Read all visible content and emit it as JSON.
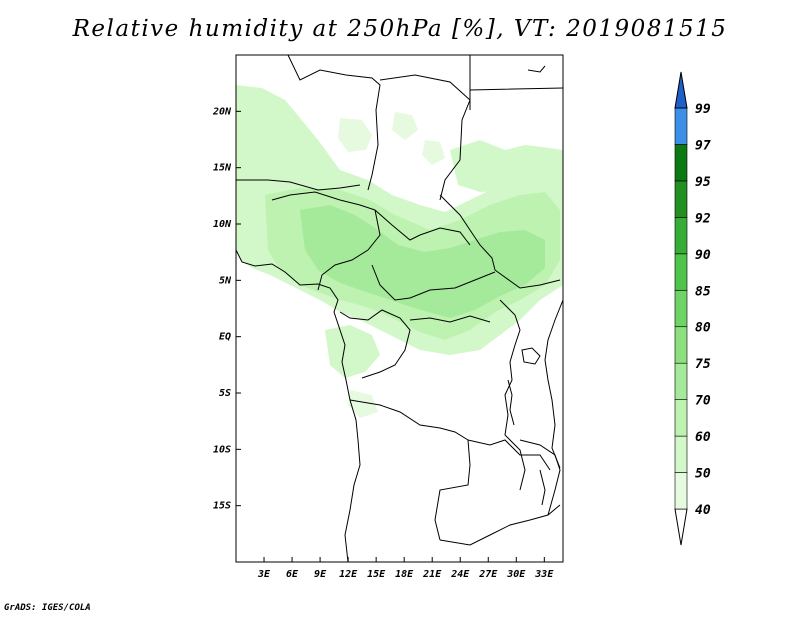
{
  "title": "Relative humidity at 250hPa [%], VT: 2019081515",
  "credit": "GrADS: IGES/COLA",
  "map": {
    "lon_range": [
      0,
      35
    ],
    "lat_range": [
      -20,
      25
    ],
    "x_ticks": [
      "3E",
      "6E",
      "9E",
      "12E",
      "15E",
      "18E",
      "21E",
      "24E",
      "27E",
      "30E",
      "33E"
    ],
    "y_ticks": [
      "20N",
      "15N",
      "10N",
      "5N",
      "EQ",
      "5S",
      "10S",
      "15S"
    ]
  },
  "colorbar": {
    "levels": [
      "40",
      "50",
      "60",
      "70",
      "75",
      "80",
      "85",
      "90",
      "92",
      "95",
      "97",
      "99"
    ],
    "colors": [
      "#e6fae0",
      "#d2f7c8",
      "#bdf2b1",
      "#a5ea9a",
      "#8ce07e",
      "#6ed466",
      "#4fc44a",
      "#36ad37",
      "#219021",
      "#0c7a13",
      "#3b8fe8",
      "#1a6fd6",
      "#1f5fc9"
    ]
  }
}
